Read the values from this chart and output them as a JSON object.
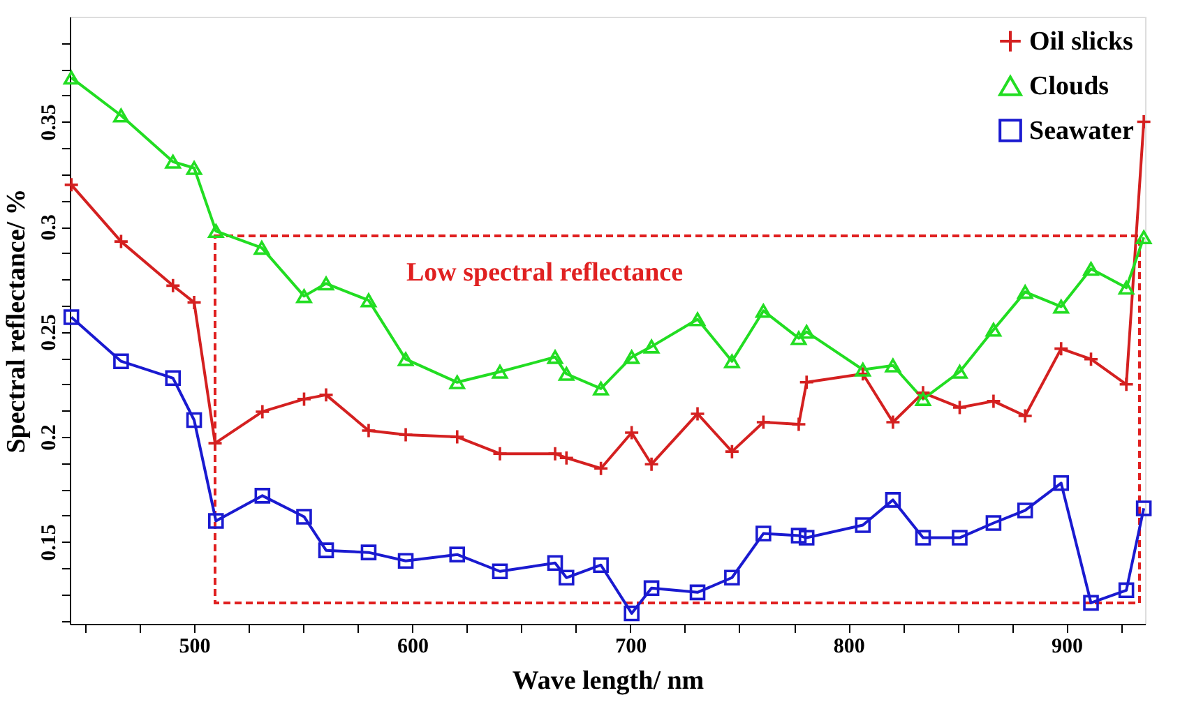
{
  "chart_data": {
    "type": "line",
    "xlabel": "Wave length/ nm",
    "ylabel": "Spectral reflectance/ %",
    "xlim": [
      443,
      936
    ],
    "ylim": [
      0.111,
      0.4
    ],
    "xticks": [
      {
        "value": 450,
        "label": null
      },
      {
        "value": 475,
        "label": null
      },
      500,
      {
        "value": 525,
        "label": null
      },
      {
        "value": 550,
        "label": null
      },
      {
        "value": 575,
        "label": null
      },
      600,
      {
        "value": 625,
        "label": null
      },
      {
        "value": 650,
        "label": null
      },
      {
        "value": 675,
        "label": null
      },
      700,
      {
        "value": 725,
        "label": null
      },
      {
        "value": 750,
        "label": null
      },
      {
        "value": 775,
        "label": null
      },
      800,
      {
        "value": 825,
        "label": null
      },
      {
        "value": 850,
        "label": null
      },
      {
        "value": 875,
        "label": null
      },
      900,
      {
        "value": 925,
        "label": null
      }
    ],
    "yticks": [
      {
        "value": 0.1125,
        "label": null
      },
      {
        "value": 0.125,
        "label": null
      },
      {
        "value": 0.1375,
        "label": null
      },
      0.15,
      {
        "value": 0.1625,
        "label": null
      },
      {
        "value": 0.175,
        "label": null
      },
      {
        "value": 0.1875,
        "label": null
      },
      0.2,
      {
        "value": 0.2125,
        "label": null
      },
      {
        "value": 0.225,
        "label": null
      },
      {
        "value": 0.2375,
        "label": null
      },
      0.25,
      {
        "value": 0.2625,
        "label": null
      },
      {
        "value": 0.275,
        "label": null
      },
      {
        "value": 0.2875,
        "label": null
      },
      0.3,
      {
        "value": 0.3125,
        "label": null
      },
      {
        "value": 0.325,
        "label": null
      },
      {
        "value": 0.3375,
        "label": null
      },
      0.35,
      {
        "value": 0.3625,
        "label": null
      },
      {
        "value": 0.375,
        "label": null
      },
      {
        "value": 0.3875,
        "label": null
      }
    ],
    "grid": false,
    "legend": "top right",
    "annotations": [
      "Low spectral reflectance"
    ],
    "series": [
      {
        "name": "Oil slicks",
        "color": "#d42020",
        "marker": "cross",
        "x": [
          443.7,
          466.5,
          490.3,
          500,
          509.6,
          531.3,
          550.4,
          560.5,
          580,
          597,
          620.6,
          640.2,
          665.5,
          670.7,
          686.5,
          700.6,
          709.7,
          730.8,
          746.6,
          761,
          777.2,
          780.8,
          806.6,
          820.4,
          834.2,
          851,
          866.5,
          881,
          897.5,
          911.2,
          927.4,
          935.4
        ],
        "values": [
          0.32,
          0.293,
          0.272,
          0.264,
          0.197,
          0.212,
          0.218,
          0.22,
          0.203,
          0.201,
          0.2,
          0.192,
          0.192,
          0.19,
          0.185,
          0.202,
          0.187,
          0.211,
          0.193,
          0.207,
          0.206,
          0.226,
          0.23,
          0.207,
          0.221,
          0.214,
          0.217,
          0.21,
          0.242,
          0.237,
          0.225,
          0.35
        ]
      },
      {
        "name": "Clouds",
        "color": "#22dd22",
        "marker": "triangle",
        "x": [
          443.7,
          466.5,
          490.3,
          500,
          510,
          531,
          550.4,
          560.5,
          580,
          597,
          620.6,
          640.2,
          665.5,
          670.7,
          686.5,
          700.6,
          709.7,
          730.8,
          746.6,
          761,
          777.2,
          780.8,
          806.6,
          820.4,
          834.2,
          851,
          866.5,
          881,
          897.5,
          911.2,
          927.4,
          935.4
        ],
        "values": [
          0.371,
          0.353,
          0.331,
          0.328,
          0.298,
          0.29,
          0.267,
          0.273,
          0.265,
          0.237,
          0.226,
          0.231,
          0.238,
          0.23,
          0.223,
          0.238,
          0.243,
          0.256,
          0.236,
          0.26,
          0.247,
          0.25,
          0.232,
          0.234,
          0.218,
          0.231,
          0.251,
          0.269,
          0.262,
          0.28,
          0.271,
          0.295
        ]
      },
      {
        "name": "Seawater",
        "color": "#1a1ad0",
        "marker": "square",
        "x": [
          443.7,
          466.5,
          490.3,
          500,
          510,
          531.3,
          550.4,
          560.5,
          580,
          597,
          620.6,
          640.2,
          665.5,
          670.7,
          686.5,
          700.6,
          709.7,
          730.8,
          746.6,
          761,
          777.2,
          780.8,
          806.6,
          820.4,
          834.2,
          851,
          866.5,
          881,
          897.5,
          911.2,
          927.4,
          935.4
        ],
        "values": [
          0.257,
          0.236,
          0.228,
          0.208,
          0.16,
          0.172,
          0.162,
          0.146,
          0.145,
          0.141,
          0.144,
          0.136,
          0.14,
          0.133,
          0.139,
          0.116,
          0.128,
          0.126,
          0.133,
          0.154,
          0.153,
          0.152,
          0.158,
          0.17,
          0.152,
          0.152,
          0.159,
          0.165,
          0.178,
          0.121,
          0.127,
          0.166
        ]
      }
    ]
  }
}
